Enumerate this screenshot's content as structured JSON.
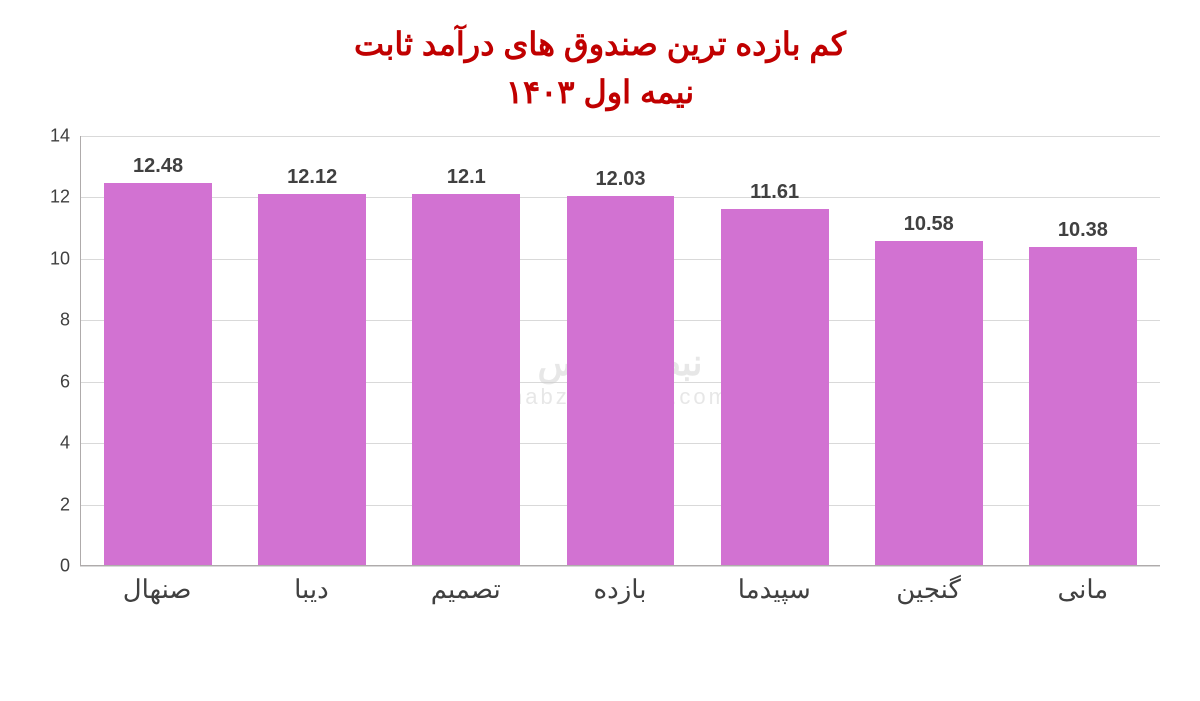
{
  "chart": {
    "type": "bar",
    "title_line1": "کم بازده ترین صندوق های درآمد ثابت",
    "title_line2": "نیمه اول ۱۴۰۳",
    "title_color": "#c00000",
    "title_fontsize": 32,
    "categories": [
      "صنهال",
      "دیبا",
      "تصمیم",
      "بازده",
      "سپیدما",
      "گنجین",
      "مانی"
    ],
    "values": [
      12.48,
      12.12,
      12.1,
      12.03,
      11.61,
      10.58,
      10.38
    ],
    "bar_color": "#d272d2",
    "bar_width": 0.7,
    "ylim": [
      0,
      14
    ],
    "ytick_step": 2,
    "yticks": [
      0,
      2,
      4,
      6,
      8,
      10,
      12,
      14
    ],
    "label_fontsize": 18,
    "value_label_fontsize": 20,
    "xaxis_fontsize": 26,
    "background_color": "#ffffff",
    "grid_color": "#d9d9d9",
    "axis_color": "#afabab",
    "text_color": "#404040",
    "watermark": "نبض بورس",
    "watermark_sub": "nabzebourse.com",
    "watermark_color": "#d0d0d0"
  }
}
